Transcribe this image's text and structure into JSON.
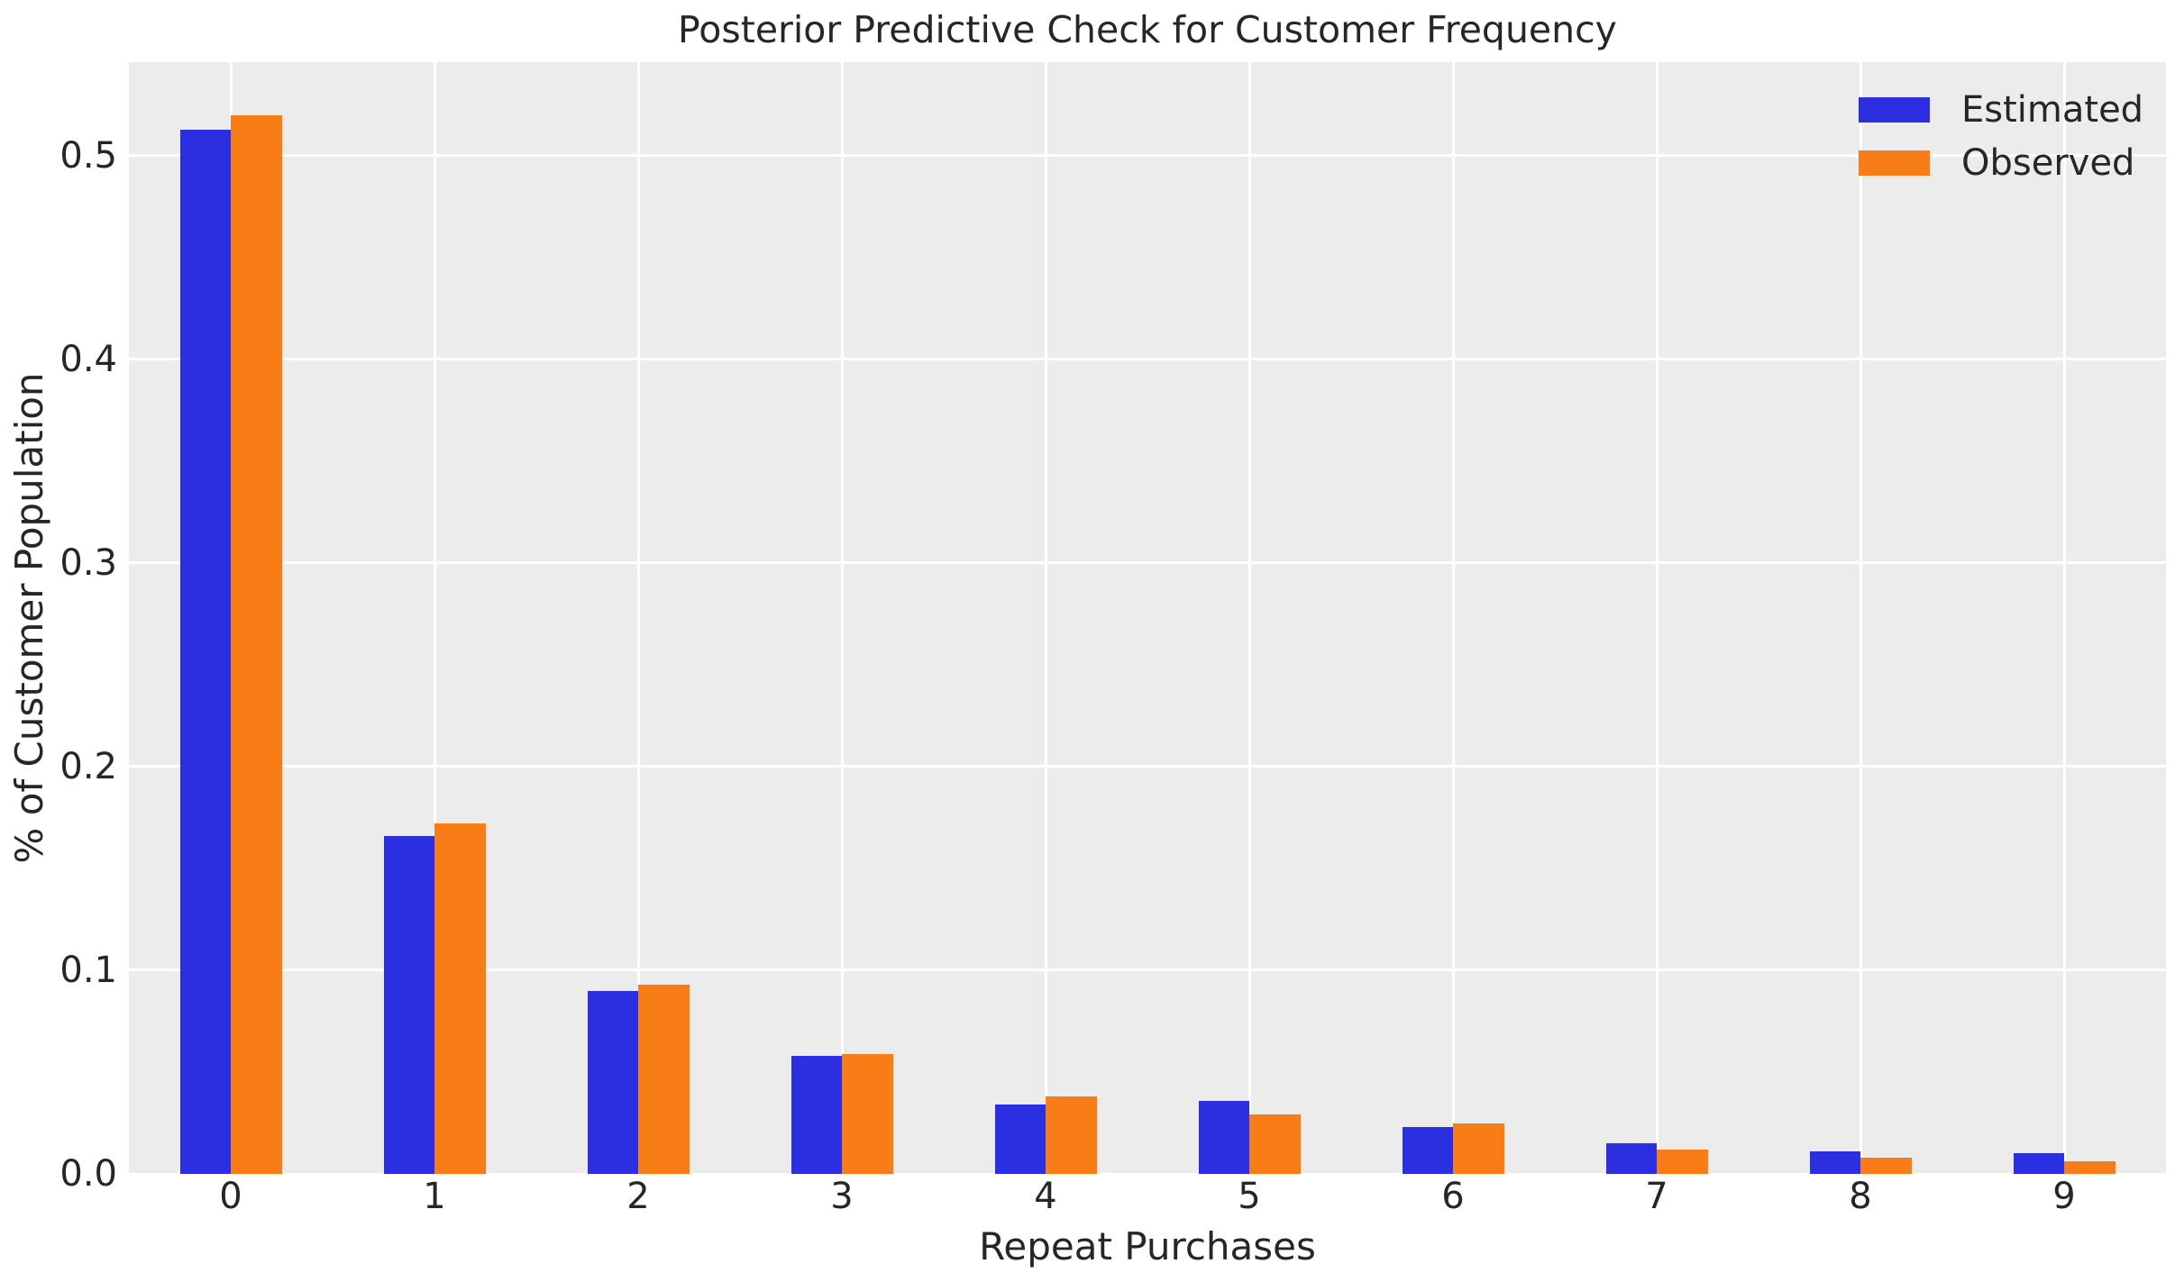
{
  "chart_data": {
    "type": "bar",
    "title": "Posterior Predictive Check for Customer Frequency",
    "xlabel": "Repeat Purchases",
    "ylabel": "% of Customer Population",
    "categories": [
      "0",
      "1",
      "2",
      "3",
      "4",
      "5",
      "6",
      "7",
      "8",
      "9"
    ],
    "series": [
      {
        "name": "Estimated",
        "color": "#2b2fe1",
        "values": [
          0.513,
          0.166,
          0.09,
          0.058,
          0.034,
          0.036,
          0.023,
          0.015,
          0.011,
          0.01
        ]
      },
      {
        "name": "Observed",
        "color": "#f87d16",
        "values": [
          0.52,
          0.172,
          0.093,
          0.059,
          0.038,
          0.029,
          0.025,
          0.012,
          0.008,
          0.006
        ]
      }
    ],
    "ylim": [
      0,
      0.546
    ],
    "yticks": [
      0.0,
      0.1,
      0.2,
      0.3,
      0.4,
      0.5
    ],
    "grid": true,
    "grid_color": "#ffffff",
    "plot_background": "#ececec",
    "figure_background": "#ffffff",
    "legend_position": "upper right",
    "legend_frame": false
  }
}
